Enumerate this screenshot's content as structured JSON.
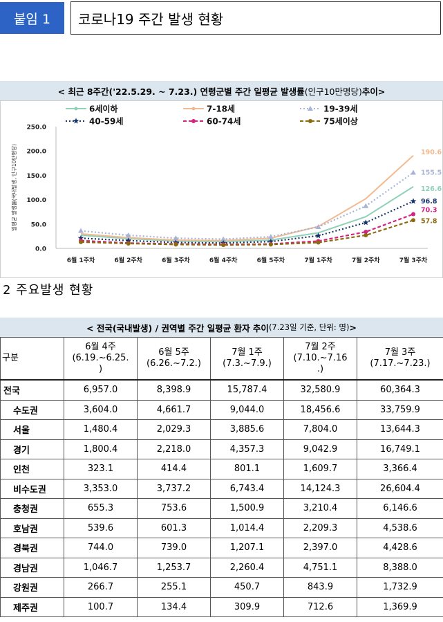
{
  "header": {
    "badge": "붙임 1",
    "title": "코로나19 주간 발생 현황"
  },
  "chart_section": {
    "title_main": "< 최근 8주간('22.5.29. ~ 7.23.) 연령군별 주간 일평균 발생률",
    "title_sub": "(인구10만명당)",
    "title_end": " 추이>"
  },
  "chart_data": {
    "type": "line",
    "ylabel": "일평균 발생률(국내발생, 인구10만명당)",
    "ylim": [
      0,
      250
    ],
    "yticks": [
      "0.0",
      "50.0",
      "100.0",
      "150.0",
      "200.0",
      "250.0"
    ],
    "categories": [
      "6월 1주차",
      "6월 2주차",
      "6월 3주차",
      "6월 4주차",
      "6월 5주차",
      "7월 1주차",
      "7월 2주차",
      "7월 3주차"
    ],
    "legend_placement": "top",
    "series": [
      {
        "name": "6세이하",
        "color": "#8fd1b9",
        "marker": "none",
        "dash": "solid",
        "values": [
          27,
          20,
          15,
          14,
          17,
          32,
          65,
          126.6
        ],
        "end_label": "126.6"
      },
      {
        "name": "7-18세",
        "color": "#f3b98f",
        "marker": "none",
        "dash": "solid",
        "values": [
          30,
          22,
          17,
          16,
          21,
          45,
          102,
          190.6
        ],
        "end_label": "190.6"
      },
      {
        "name": "19-39세",
        "color": "#a8b4d6",
        "marker": "triangle",
        "dash": "dot",
        "values": [
          36,
          27,
          21,
          19,
          24,
          44,
          87,
          155.5
        ],
        "end_label": "155.5"
      },
      {
        "name": "40-59세",
        "color": "#17336b",
        "marker": "star",
        "dash": "dot",
        "values": [
          21,
          16,
          12,
          11,
          14,
          26,
          53,
          96.8
        ],
        "end_label": "96.8"
      },
      {
        "name": "60-74세",
        "color": "#d2247e",
        "marker": "circle",
        "dash": "dash",
        "values": [
          16,
          11,
          9,
          8,
          9,
          15,
          34,
          70.3
        ],
        "end_label": "70.3"
      },
      {
        "name": "75세이상",
        "color": "#8c6a10",
        "marker": "circle",
        "dash": "dash",
        "values": [
          13,
          10,
          8,
          7,
          8,
          12,
          27,
          57.8
        ],
        "end_label": "57.8"
      }
    ]
  },
  "section2": {
    "title": "2  주요발생 현황"
  },
  "table_section": {
    "title_main": "< 전국(국내발생) / 권역별 주간 일평균 환자 추이 ",
    "title_sub": "(7.23일 기준, 단위: 명)",
    "title_end": " >",
    "header": [
      "구분",
      "6월 4주\n(6.19.~6.25.\n)",
      "6월 5주\n(6.26.~7.2.)",
      "7월 1주\n(7.3.~7.9.)",
      "7월 2주\n(7.10.~7.16\n.)",
      "7월 3주\n(7.17.~7.23.)"
    ],
    "rows": [
      {
        "name": "전국",
        "indent": false,
        "cells": [
          "6,957.0",
          "8,398.9",
          "15,787.4",
          "32,580.9",
          "60,364.3"
        ]
      },
      {
        "name": "수도권",
        "indent": true,
        "cells": [
          "3,604.0",
          "4,661.7",
          "9,044.0",
          "18,456.6",
          "33,759.9"
        ]
      },
      {
        "name": "서울",
        "indent": true,
        "cells": [
          "1,480.4",
          "2,029.3",
          "3,885.6",
          "7,804.0",
          "13,644.3"
        ]
      },
      {
        "name": "경기",
        "indent": true,
        "cells": [
          "1,800.4",
          "2,218.0",
          "4,357.3",
          "9,042.9",
          "16,749.1"
        ]
      },
      {
        "name": "인천",
        "indent": true,
        "cells": [
          "323.1",
          "414.4",
          "801.1",
          "1,609.7",
          "3,366.4"
        ]
      },
      {
        "name": "비수도권",
        "indent": true,
        "cells": [
          "3,353.0",
          "3,737.2",
          "6,743.4",
          "14,124.3",
          "26,604.4"
        ]
      },
      {
        "name": "충청권",
        "indent": true,
        "cells": [
          "655.3",
          "753.6",
          "1,500.9",
          "3,210.4",
          "6,146.6"
        ]
      },
      {
        "name": "호남권",
        "indent": true,
        "cells": [
          "539.6",
          "601.3",
          "1,014.4",
          "2,209.3",
          "4,538.6"
        ]
      },
      {
        "name": "경북권",
        "indent": true,
        "cells": [
          "744.0",
          "739.0",
          "1,207.1",
          "2,397.0",
          "4,428.6"
        ]
      },
      {
        "name": "경남권",
        "indent": true,
        "cells": [
          "1,046.7",
          "1,253.7",
          "2,260.4",
          "4,751.1",
          "8,388.0"
        ]
      },
      {
        "name": "강원권",
        "indent": true,
        "cells": [
          "266.7",
          "255.1",
          "450.7",
          "843.9",
          "1,732.9"
        ]
      },
      {
        "name": "제주권",
        "indent": true,
        "cells": [
          "100.7",
          "134.4",
          "309.9",
          "712.6",
          "1,369.9"
        ]
      }
    ]
  }
}
